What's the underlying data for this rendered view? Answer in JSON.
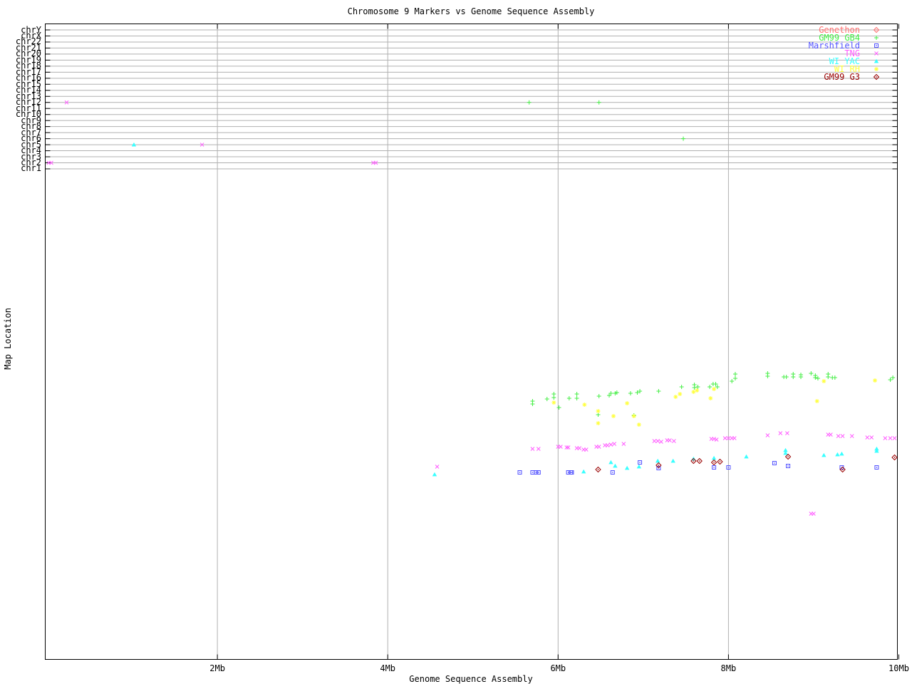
{
  "chart_data": {
    "type": "scatter",
    "title": "Chromosome 9 Markers vs Genome Sequence Assembly",
    "xlabel": "Genome Sequence Assembly",
    "ylabel": "Map Location",
    "x_unit": "Mb",
    "x_range_mb": [
      0,
      10
    ],
    "x_ticks": [
      {
        "label": "2Mb",
        "mb": 2
      },
      {
        "label": "4Mb",
        "mb": 4
      },
      {
        "label": "6Mb",
        "mb": 6
      },
      {
        "label": "8Mb",
        "mb": 8
      },
      {
        "label": "10Mb",
        "mb": 10
      }
    ],
    "grid": true,
    "legend_position": "top-right",
    "y_axis_note": "top band rows = whole-genome chromosomes; lower cloud = chromosome 9 map locations (no numeric y tick labels shown); map point y given as screen px",
    "chromosome_rows": [
      "chrY",
      "chrX",
      "chr22",
      "chr21",
      "chr20",
      "chr19",
      "chr18",
      "chr17",
      "chr16",
      "chr15",
      "chr14",
      "chr13",
      "chr12",
      "chr11",
      "chr10",
      "chr9",
      "chr8",
      "chr7",
      "chr6",
      "chr5",
      "chr4",
      "chr3",
      "chr2",
      "chr1"
    ],
    "map_points_format": "[assembly_position_Mb, screen_y_px]",
    "series": [
      {
        "name": "Genethon",
        "marker": "diamond-dot",
        "color": "#ff6f6f",
        "chromosome_hits": [],
        "map_points": []
      },
      {
        "name": "GM99 GB4",
        "marker": "plus",
        "color": "#44ee44",
        "chromosome_hits": [
          {
            "chr": "chr12",
            "mb": 5.66
          },
          {
            "chr": "chr12",
            "mb": 6.48
          },
          {
            "chr": "chr6",
            "mb": 7.47
          }
        ],
        "map_points": [
          [
            5.7,
            563
          ],
          [
            5.7,
            567
          ],
          [
            5.87,
            560
          ],
          [
            5.95,
            553
          ],
          [
            5.95,
            558
          ],
          [
            6.01,
            572
          ],
          [
            6.13,
            559
          ],
          [
            6.22,
            553
          ],
          [
            6.22,
            559
          ],
          [
            6.48,
            556
          ],
          [
            6.6,
            555
          ],
          [
            6.62,
            552
          ],
          [
            6.67,
            552
          ],
          [
            6.69,
            551
          ],
          [
            6.85,
            552
          ],
          [
            6.93,
            551
          ],
          [
            6.96,
            549
          ],
          [
            6.47,
            582
          ],
          [
            6.89,
            583
          ],
          [
            7.18,
            549
          ],
          [
            7.45,
            543
          ],
          [
            7.6,
            540
          ],
          [
            7.6,
            544
          ],
          [
            7.64,
            543
          ],
          [
            7.78,
            543
          ],
          [
            7.82,
            539
          ],
          [
            7.85,
            539
          ],
          [
            7.87,
            543
          ],
          [
            8.04,
            535
          ],
          [
            8.08,
            525
          ],
          [
            8.08,
            531
          ],
          [
            8.46,
            524
          ],
          [
            8.46,
            528
          ],
          [
            8.65,
            529
          ],
          [
            8.68,
            529
          ],
          [
            8.76,
            525
          ],
          [
            8.76,
            529
          ],
          [
            8.85,
            526
          ],
          [
            8.85,
            529
          ],
          [
            8.97,
            524
          ],
          [
            9.02,
            527
          ],
          [
            9.02,
            530
          ],
          [
            9.05,
            531
          ],
          [
            9.17,
            525
          ],
          [
            9.17,
            529
          ],
          [
            9.22,
            530
          ],
          [
            9.25,
            530
          ],
          [
            9.9,
            533
          ],
          [
            9.93,
            530
          ]
        ]
      },
      {
        "name": "Marshfield",
        "marker": "square-dot",
        "color": "#5151ff",
        "chromosome_hits": [],
        "map_points": [
          [
            5.55,
            663
          ],
          [
            5.7,
            663
          ],
          [
            5.74,
            663
          ],
          [
            5.77,
            663
          ],
          [
            6.12,
            663
          ],
          [
            6.15,
            663
          ],
          [
            6.16,
            663
          ],
          [
            6.64,
            663
          ],
          [
            6.96,
            649
          ],
          [
            7.18,
            657
          ],
          [
            7.83,
            656
          ],
          [
            8.0,
            656
          ],
          [
            8.54,
            650
          ],
          [
            8.7,
            654
          ],
          [
            9.33,
            656
          ],
          [
            9.74,
            656
          ]
        ]
      },
      {
        "name": "TNG",
        "marker": "cross",
        "color": "#ff5cff",
        "chromosome_hits": [
          {
            "chr": "chr12",
            "mb": 0.23
          },
          {
            "chr": "chr5",
            "mb": 1.82
          },
          {
            "chr": "chr2",
            "mb": 0.02
          },
          {
            "chr": "chr2",
            "mb": 0.05
          },
          {
            "chr": "chr2",
            "mb": 3.83
          },
          {
            "chr": "chr2",
            "mb": 3.86
          }
        ],
        "map_points": [
          [
            4.58,
            655
          ],
          [
            5.7,
            630
          ],
          [
            5.77,
            630
          ],
          [
            6.0,
            627
          ],
          [
            6.03,
            627
          ],
          [
            6.1,
            628
          ],
          [
            6.12,
            628
          ],
          [
            6.22,
            629
          ],
          [
            6.25,
            629
          ],
          [
            6.3,
            631
          ],
          [
            6.33,
            631
          ],
          [
            6.45,
            627
          ],
          [
            6.48,
            627
          ],
          [
            6.55,
            625
          ],
          [
            6.58,
            625
          ],
          [
            6.62,
            624
          ],
          [
            6.66,
            623
          ],
          [
            6.77,
            623
          ],
          [
            7.13,
            619
          ],
          [
            7.17,
            619
          ],
          [
            7.21,
            620
          ],
          [
            7.28,
            618
          ],
          [
            7.31,
            618
          ],
          [
            7.36,
            619
          ],
          [
            7.8,
            616
          ],
          [
            7.83,
            616
          ],
          [
            7.86,
            617
          ],
          [
            7.96,
            615
          ],
          [
            8.0,
            615
          ],
          [
            8.04,
            615
          ],
          [
            8.07,
            615
          ],
          [
            8.46,
            611
          ],
          [
            8.61,
            608
          ],
          [
            8.69,
            608
          ],
          [
            9.17,
            610
          ],
          [
            9.2,
            610
          ],
          [
            9.29,
            612
          ],
          [
            9.34,
            612
          ],
          [
            9.45,
            612
          ],
          [
            9.63,
            614
          ],
          [
            9.68,
            614
          ],
          [
            9.84,
            615
          ],
          [
            9.9,
            615
          ],
          [
            9.95,
            615
          ],
          [
            8.97,
            721
          ],
          [
            9.0,
            721
          ]
        ]
      },
      {
        "name": "WI YAC",
        "marker": "triangle",
        "color": "#39ffff",
        "chromosome_hits": [
          {
            "chr": "chr5",
            "mb": 1.02
          }
        ],
        "map_points": [
          [
            4.55,
            666
          ],
          [
            6.3,
            662
          ],
          [
            6.62,
            649
          ],
          [
            6.67,
            654
          ],
          [
            6.81,
            657
          ],
          [
            6.95,
            655
          ],
          [
            7.17,
            647
          ],
          [
            7.35,
            647
          ],
          [
            7.59,
            644
          ],
          [
            7.83,
            643
          ],
          [
            8.21,
            641
          ],
          [
            8.67,
            632
          ],
          [
            8.67,
            636
          ],
          [
            9.12,
            639
          ],
          [
            9.28,
            638
          ],
          [
            9.33,
            637
          ],
          [
            9.74,
            630
          ],
          [
            9.74,
            633
          ]
        ]
      },
      {
        "name": "WI RH",
        "marker": "star",
        "color": "#ffff3c",
        "chromosome_hits": [],
        "map_points": [
          [
            5.95,
            565
          ],
          [
            6.31,
            568
          ],
          [
            6.47,
            577
          ],
          [
            6.65,
            584
          ],
          [
            6.81,
            566
          ],
          [
            6.89,
            584
          ],
          [
            6.47,
            594
          ],
          [
            6.95,
            596
          ],
          [
            7.38,
            557
          ],
          [
            7.43,
            553
          ],
          [
            7.59,
            550
          ],
          [
            7.63,
            548
          ],
          [
            7.79,
            559
          ],
          [
            7.83,
            546
          ],
          [
            9.04,
            563
          ],
          [
            9.12,
            535
          ],
          [
            9.72,
            534
          ]
        ]
      },
      {
        "name": "GM99 G3",
        "marker": "diamond-dot",
        "color": "#990000",
        "chromosome_hits": [],
        "map_points": [
          [
            6.47,
            659
          ],
          [
            7.18,
            653
          ],
          [
            7.59,
            647
          ],
          [
            7.66,
            647
          ],
          [
            7.83,
            649
          ],
          [
            7.9,
            648
          ],
          [
            8.7,
            641
          ],
          [
            9.34,
            659
          ],
          [
            9.95,
            642
          ]
        ]
      }
    ]
  }
}
